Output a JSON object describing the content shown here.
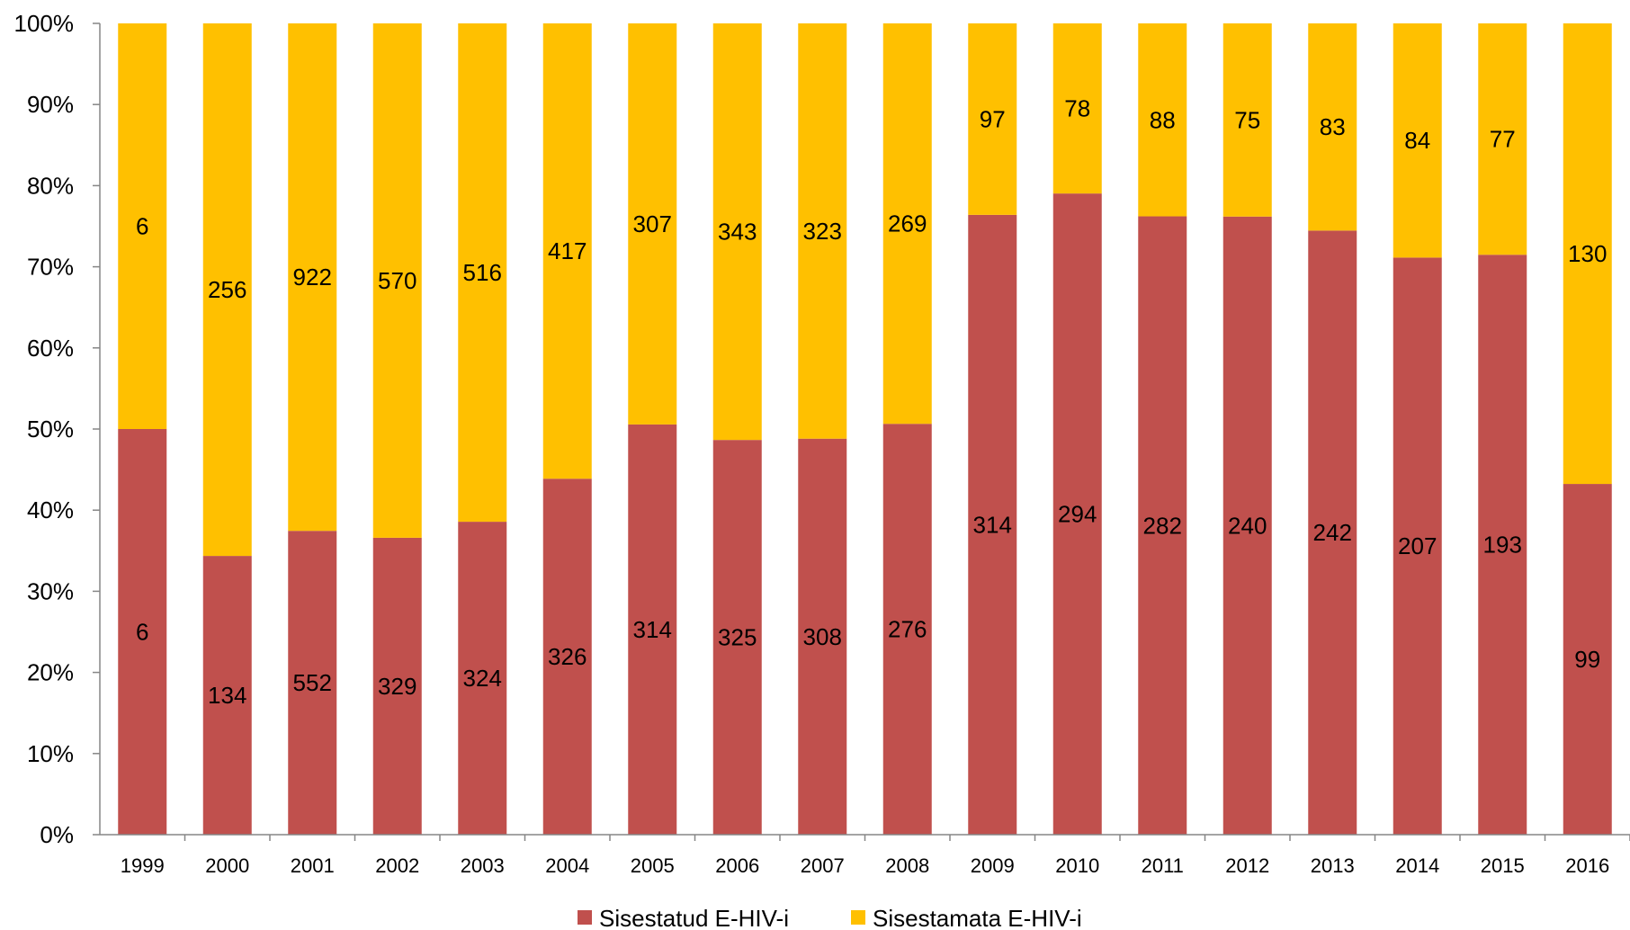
{
  "chart_data": {
    "type": "bar",
    "stacked": "percent",
    "categories": [
      "1999",
      "2000",
      "2001",
      "2002",
      "2003",
      "2004",
      "2005",
      "2006",
      "2007",
      "2008",
      "2009",
      "2010",
      "2011",
      "2012",
      "2013",
      "2014",
      "2015",
      "2016"
    ],
    "series": [
      {
        "name": "Sisestatud E-HIV-i",
        "color": "#C0504D",
        "values": [
          6,
          134,
          552,
          329,
          324,
          326,
          314,
          325,
          308,
          276,
          314,
          294,
          282,
          240,
          242,
          207,
          193,
          99
        ]
      },
      {
        "name": "Sisestamata E-HIV-i",
        "color": "#FFC000",
        "values": [
          6,
          256,
          922,
          570,
          516,
          417,
          307,
          343,
          323,
          269,
          97,
          78,
          88,
          75,
          83,
          84,
          77,
          130
        ]
      }
    ],
    "yticks": [
      "0%",
      "10%",
      "20%",
      "30%",
      "40%",
      "50%",
      "60%",
      "70%",
      "80%",
      "90%",
      "100%"
    ],
    "ylim": [
      0,
      100
    ],
    "legend_position": "bottom",
    "grid": false
  }
}
